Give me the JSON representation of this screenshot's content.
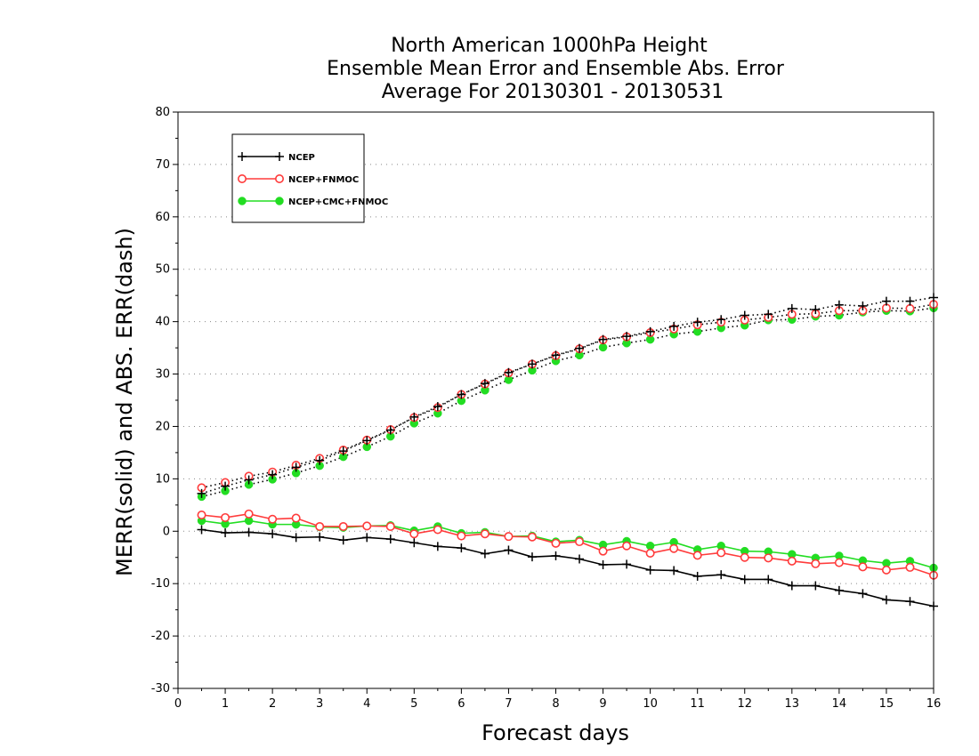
{
  "chart_data": {
    "type": "line",
    "title_lines": [
      "North American 1000hPa Height",
      "Ensemble Mean Error and Ensemble Abs. Error",
      "Average For 20130301 - 20130531"
    ],
    "xlabel": "Forecast days",
    "ylabel": "MERR(solid) and ABS. ERR(dash)",
    "xlim": [
      0,
      16
    ],
    "ylim": [
      -30,
      80
    ],
    "x_ticks": [
      0,
      1,
      2,
      3,
      4,
      5,
      6,
      7,
      8,
      9,
      10,
      11,
      12,
      13,
      14,
      15,
      16
    ],
    "y_ticks": [
      -30,
      -20,
      -10,
      0,
      10,
      20,
      30,
      40,
      50,
      60,
      70,
      80
    ],
    "grid": true,
    "legend_position": "top-left",
    "x": [
      0.5,
      1,
      1.5,
      2,
      2.5,
      3,
      3.5,
      4,
      4.5,
      5,
      5.5,
      6,
      6.5,
      7,
      7.5,
      8,
      8.5,
      9,
      9.5,
      10,
      10.5,
      11,
      11.5,
      12,
      12.5,
      13,
      13.5,
      14,
      14.5,
      15,
      15.5,
      16
    ],
    "series": [
      {
        "name": "NCEP",
        "color": "#000000",
        "marker": "plus",
        "mean_error": [
          0.3,
          -0.3,
          -0.2,
          -0.5,
          -1.2,
          -1.1,
          -1.7,
          -1.2,
          -1.5,
          -2.2,
          -2.9,
          -3.2,
          -4.3,
          -3.6,
          -4.9,
          -4.7,
          -5.3,
          -6.4,
          -6.3,
          -7.4,
          -7.5,
          -8.6,
          -8.3,
          -9.2,
          -9.2,
          -10.4,
          -10.4,
          -11.3,
          -11.9,
          -13.1,
          -13.4,
          -14.3
        ],
        "abs_error": [
          7.2,
          8.6,
          9.8,
          10.8,
          12.2,
          13.5,
          15.3,
          17.3,
          19.3,
          21.8,
          23.8,
          26.1,
          28.2,
          30.3,
          31.9,
          33.6,
          34.9,
          36.6,
          37.2,
          38.1,
          39.1,
          39.9,
          40.4,
          41.2,
          41.4,
          42.5,
          42.3,
          43.2,
          43.0,
          43.9,
          43.9,
          44.6
        ]
      },
      {
        "name": "NCEP+FNMOC",
        "color": "#ff3b3b",
        "marker": "open-circle",
        "mean_error": [
          3.1,
          2.6,
          3.3,
          2.3,
          2.5,
          0.9,
          0.9,
          1.0,
          0.9,
          -0.5,
          0.3,
          -0.9,
          -0.5,
          -1.0,
          -1.1,
          -2.3,
          -2.0,
          -3.8,
          -2.8,
          -4.2,
          -3.3,
          -4.6,
          -4.1,
          -5.0,
          -5.1,
          -5.7,
          -6.2,
          -6.0,
          -6.8,
          -7.4,
          -6.9,
          -8.4
        ],
        "abs_error": [
          8.3,
          9.3,
          10.5,
          11.3,
          12.6,
          13.9,
          15.5,
          17.4,
          19.4,
          21.7,
          23.6,
          26.1,
          28.1,
          30.2,
          31.9,
          33.5,
          34.8,
          36.5,
          37.1,
          37.9,
          38.6,
          39.4,
          39.9,
          40.3,
          40.8,
          41.4,
          41.5,
          42.1,
          42.1,
          42.6,
          42.5,
          43.3
        ]
      },
      {
        "name": "NCEP+CMC+FNMOC",
        "color": "#22dd22",
        "marker": "filled-circle",
        "mean_error": [
          2.0,
          1.4,
          2.0,
          1.3,
          1.3,
          0.8,
          0.7,
          1.0,
          1.1,
          0.1,
          0.9,
          -0.4,
          -0.2,
          -1.0,
          -0.9,
          -2.0,
          -1.7,
          -2.6,
          -1.9,
          -2.8,
          -2.1,
          -3.5,
          -2.8,
          -3.8,
          -3.9,
          -4.4,
          -5.1,
          -4.7,
          -5.6,
          -6.1,
          -5.7,
          -7.0
        ],
        "abs_error": [
          6.6,
          7.7,
          8.9,
          9.9,
          11.1,
          12.5,
          14.2,
          16.1,
          18.1,
          20.6,
          22.5,
          24.9,
          26.9,
          28.9,
          30.7,
          32.5,
          33.6,
          35.1,
          35.9,
          36.6,
          37.6,
          38.1,
          38.8,
          39.3,
          40.3,
          40.4,
          41.0,
          41.2,
          41.8,
          42.1,
          42.0,
          42.6
        ]
      }
    ]
  }
}
